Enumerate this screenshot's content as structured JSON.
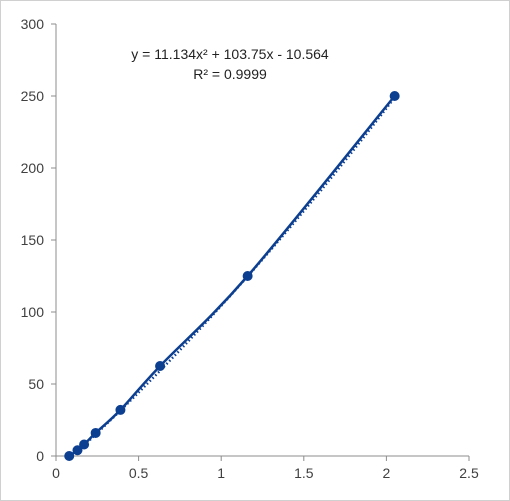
{
  "chart_data": {
    "type": "scatter",
    "title": "",
    "xlabel": "",
    "ylabel": "",
    "xlim": [
      0,
      2.5
    ],
    "ylim": [
      0,
      300
    ],
    "x_ticks": [
      "0",
      "0.5",
      "1",
      "1.5",
      "2",
      "2.5"
    ],
    "y_ticks": [
      "0",
      "50",
      "100",
      "150",
      "200",
      "250",
      "300"
    ],
    "grid": false,
    "series": [
      {
        "x": [
          0.08,
          0.13,
          0.17,
          0.24,
          0.39,
          0.63,
          1.16,
          2.05
        ],
        "y": [
          0,
          4,
          8,
          16,
          32,
          62.5,
          125,
          250
        ],
        "color": "#0d3f91",
        "marker": "circle",
        "line": "smooth"
      }
    ],
    "trendline": {
      "type": "polynomial",
      "coefficients": [
        11.134,
        103.75,
        -10.564
      ],
      "style": "dotted",
      "color": "#0d3f91"
    },
    "annotations": {
      "equation_label": "y = 11.134x² + 103.75x - 10.564",
      "r2_label": "R² = 0.9999"
    }
  }
}
